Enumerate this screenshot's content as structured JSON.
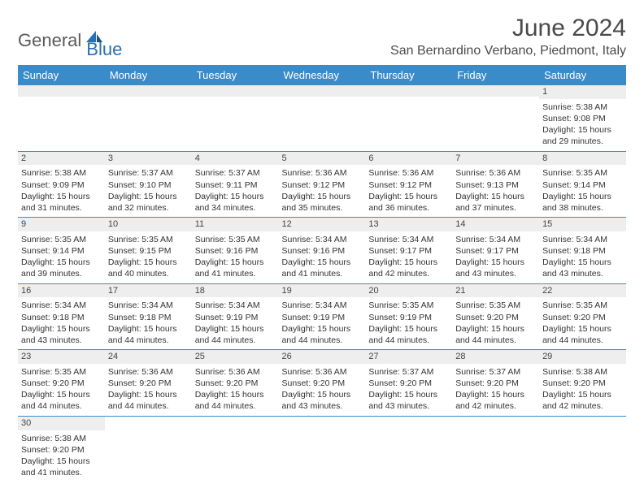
{
  "brand": {
    "gray": "General",
    "blue": "Blue"
  },
  "title": "June 2024",
  "location": "San Bernardino Verbano, Piedmont, Italy",
  "colors": {
    "header_bg": "#3b8bc9",
    "header_fg": "#ffffff",
    "cell_border": "#3b8bc9",
    "daynum_bg": "#eeeeee",
    "text": "#333333",
    "title_color": "#4a4a4a"
  },
  "daysOfWeek": [
    "Sunday",
    "Monday",
    "Tuesday",
    "Wednesday",
    "Thursday",
    "Friday",
    "Saturday"
  ],
  "labels": {
    "sunrise": "Sunrise:",
    "sunset": "Sunset:",
    "daylight": "Daylight:"
  },
  "days": {
    "1": {
      "sunrise": "5:38 AM",
      "sunset": "9:08 PM",
      "daylight": "15 hours and 29 minutes."
    },
    "2": {
      "sunrise": "5:38 AM",
      "sunset": "9:09 PM",
      "daylight": "15 hours and 31 minutes."
    },
    "3": {
      "sunrise": "5:37 AM",
      "sunset": "9:10 PM",
      "daylight": "15 hours and 32 minutes."
    },
    "4": {
      "sunrise": "5:37 AM",
      "sunset": "9:11 PM",
      "daylight": "15 hours and 34 minutes."
    },
    "5": {
      "sunrise": "5:36 AM",
      "sunset": "9:12 PM",
      "daylight": "15 hours and 35 minutes."
    },
    "6": {
      "sunrise": "5:36 AM",
      "sunset": "9:12 PM",
      "daylight": "15 hours and 36 minutes."
    },
    "7": {
      "sunrise": "5:36 AM",
      "sunset": "9:13 PM",
      "daylight": "15 hours and 37 minutes."
    },
    "8": {
      "sunrise": "5:35 AM",
      "sunset": "9:14 PM",
      "daylight": "15 hours and 38 minutes."
    },
    "9": {
      "sunrise": "5:35 AM",
      "sunset": "9:14 PM",
      "daylight": "15 hours and 39 minutes."
    },
    "10": {
      "sunrise": "5:35 AM",
      "sunset": "9:15 PM",
      "daylight": "15 hours and 40 minutes."
    },
    "11": {
      "sunrise": "5:35 AM",
      "sunset": "9:16 PM",
      "daylight": "15 hours and 41 minutes."
    },
    "12": {
      "sunrise": "5:34 AM",
      "sunset": "9:16 PM",
      "daylight": "15 hours and 41 minutes."
    },
    "13": {
      "sunrise": "5:34 AM",
      "sunset": "9:17 PM",
      "daylight": "15 hours and 42 minutes."
    },
    "14": {
      "sunrise": "5:34 AM",
      "sunset": "9:17 PM",
      "daylight": "15 hours and 43 minutes."
    },
    "15": {
      "sunrise": "5:34 AM",
      "sunset": "9:18 PM",
      "daylight": "15 hours and 43 minutes."
    },
    "16": {
      "sunrise": "5:34 AM",
      "sunset": "9:18 PM",
      "daylight": "15 hours and 43 minutes."
    },
    "17": {
      "sunrise": "5:34 AM",
      "sunset": "9:18 PM",
      "daylight": "15 hours and 44 minutes."
    },
    "18": {
      "sunrise": "5:34 AM",
      "sunset": "9:19 PM",
      "daylight": "15 hours and 44 minutes."
    },
    "19": {
      "sunrise": "5:34 AM",
      "sunset": "9:19 PM",
      "daylight": "15 hours and 44 minutes."
    },
    "20": {
      "sunrise": "5:35 AM",
      "sunset": "9:19 PM",
      "daylight": "15 hours and 44 minutes."
    },
    "21": {
      "sunrise": "5:35 AM",
      "sunset": "9:20 PM",
      "daylight": "15 hours and 44 minutes."
    },
    "22": {
      "sunrise": "5:35 AM",
      "sunset": "9:20 PM",
      "daylight": "15 hours and 44 minutes."
    },
    "23": {
      "sunrise": "5:35 AM",
      "sunset": "9:20 PM",
      "daylight": "15 hours and 44 minutes."
    },
    "24": {
      "sunrise": "5:36 AM",
      "sunset": "9:20 PM",
      "daylight": "15 hours and 44 minutes."
    },
    "25": {
      "sunrise": "5:36 AM",
      "sunset": "9:20 PM",
      "daylight": "15 hours and 44 minutes."
    },
    "26": {
      "sunrise": "5:36 AM",
      "sunset": "9:20 PM",
      "daylight": "15 hours and 43 minutes."
    },
    "27": {
      "sunrise": "5:37 AM",
      "sunset": "9:20 PM",
      "daylight": "15 hours and 43 minutes."
    },
    "28": {
      "sunrise": "5:37 AM",
      "sunset": "9:20 PM",
      "daylight": "15 hours and 42 minutes."
    },
    "29": {
      "sunrise": "5:38 AM",
      "sunset": "9:20 PM",
      "daylight": "15 hours and 42 minutes."
    },
    "30": {
      "sunrise": "5:38 AM",
      "sunset": "9:20 PM",
      "daylight": "15 hours and 41 minutes."
    }
  },
  "layout": {
    "startDayOfWeek": 6,
    "daysInMonth": 30,
    "rows": 6,
    "cols": 7
  }
}
